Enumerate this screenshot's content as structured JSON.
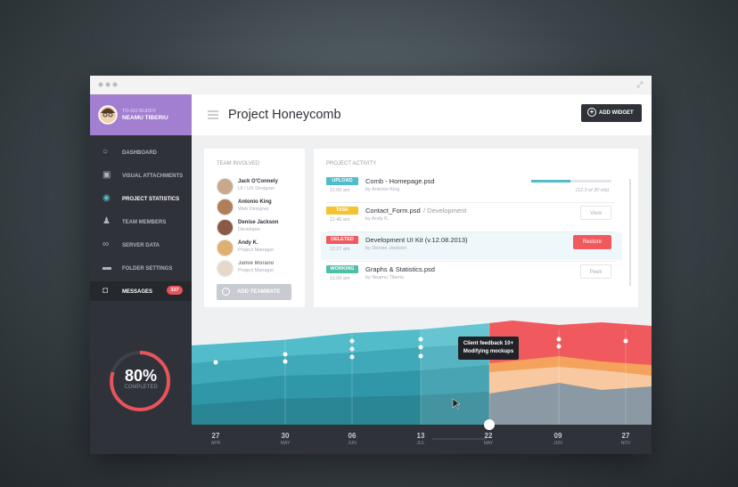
{
  "sidebar": {
    "profile": {
      "label": "TO-DO BUDDY",
      "name": "NEAMU TIBERIU"
    },
    "menu": [
      "DASHBOARD",
      "VISUAL ATTACHMENTS",
      "PROJECT STATISTICS",
      "TEAM MEMBERS",
      "SERVER DATA",
      "FOLDER SETTINGS",
      "MESSAGES"
    ],
    "badge": "327",
    "progress": {
      "value": "80%",
      "label": "COMPLETED"
    }
  },
  "header": {
    "title": "Project Honeycomb",
    "button": "ADD WIDGET"
  },
  "team": {
    "title": "TEAM INVOLVED",
    "members": [
      {
        "name": "Jack O'Connely",
        "role": "UI / UX Designer"
      },
      {
        "name": "Antonio King",
        "role": "Web Designer"
      },
      {
        "name": "Denise Jackson",
        "role": "Developer"
      },
      {
        "name": "Andy K.",
        "role": "Project Manager"
      },
      {
        "name": "Jamie Morano",
        "role": "Project Manager"
      }
    ],
    "button": "ADD TEAMMATE"
  },
  "activity": {
    "title": "PROJECT ACTIVITY",
    "rows": [
      {
        "tag": "UPLOAD",
        "time": "11:00 am",
        "title": "Comb - Homepage.psd",
        "by": "by Antonio King",
        "action": "(12.3 of 30 mb)"
      },
      {
        "tag": "TASK",
        "time": "11:40 am",
        "title": "Contact_Form.psd",
        "suffix": "/ Development",
        "by": "by Andy K.",
        "action": "View"
      },
      {
        "tag": "DELETED",
        "time": "11:27 am",
        "title": "Development UI Kit (v.12.08.2013)",
        "by": "by Denise Jackson",
        "action": "Restore"
      },
      {
        "tag": "WORKING",
        "time": "11:00 am",
        "title": "Graphs & Statistics.psd",
        "by": "by Neamu Tiberiu",
        "action": "Peek"
      }
    ]
  },
  "tooltip": [
    "Client feedback 10+",
    "Modifying mockups"
  ],
  "timeline": [
    {
      "day": "27",
      "month": "APR"
    },
    {
      "day": "30",
      "month": "MAY"
    },
    {
      "day": "06",
      "month": "JUN"
    },
    {
      "day": "13",
      "month": "JUL"
    },
    {
      "day": "22",
      "month": "MAY"
    },
    {
      "day": "09",
      "month": "JUN"
    },
    {
      "day": "27",
      "month": "NOV"
    }
  ]
}
